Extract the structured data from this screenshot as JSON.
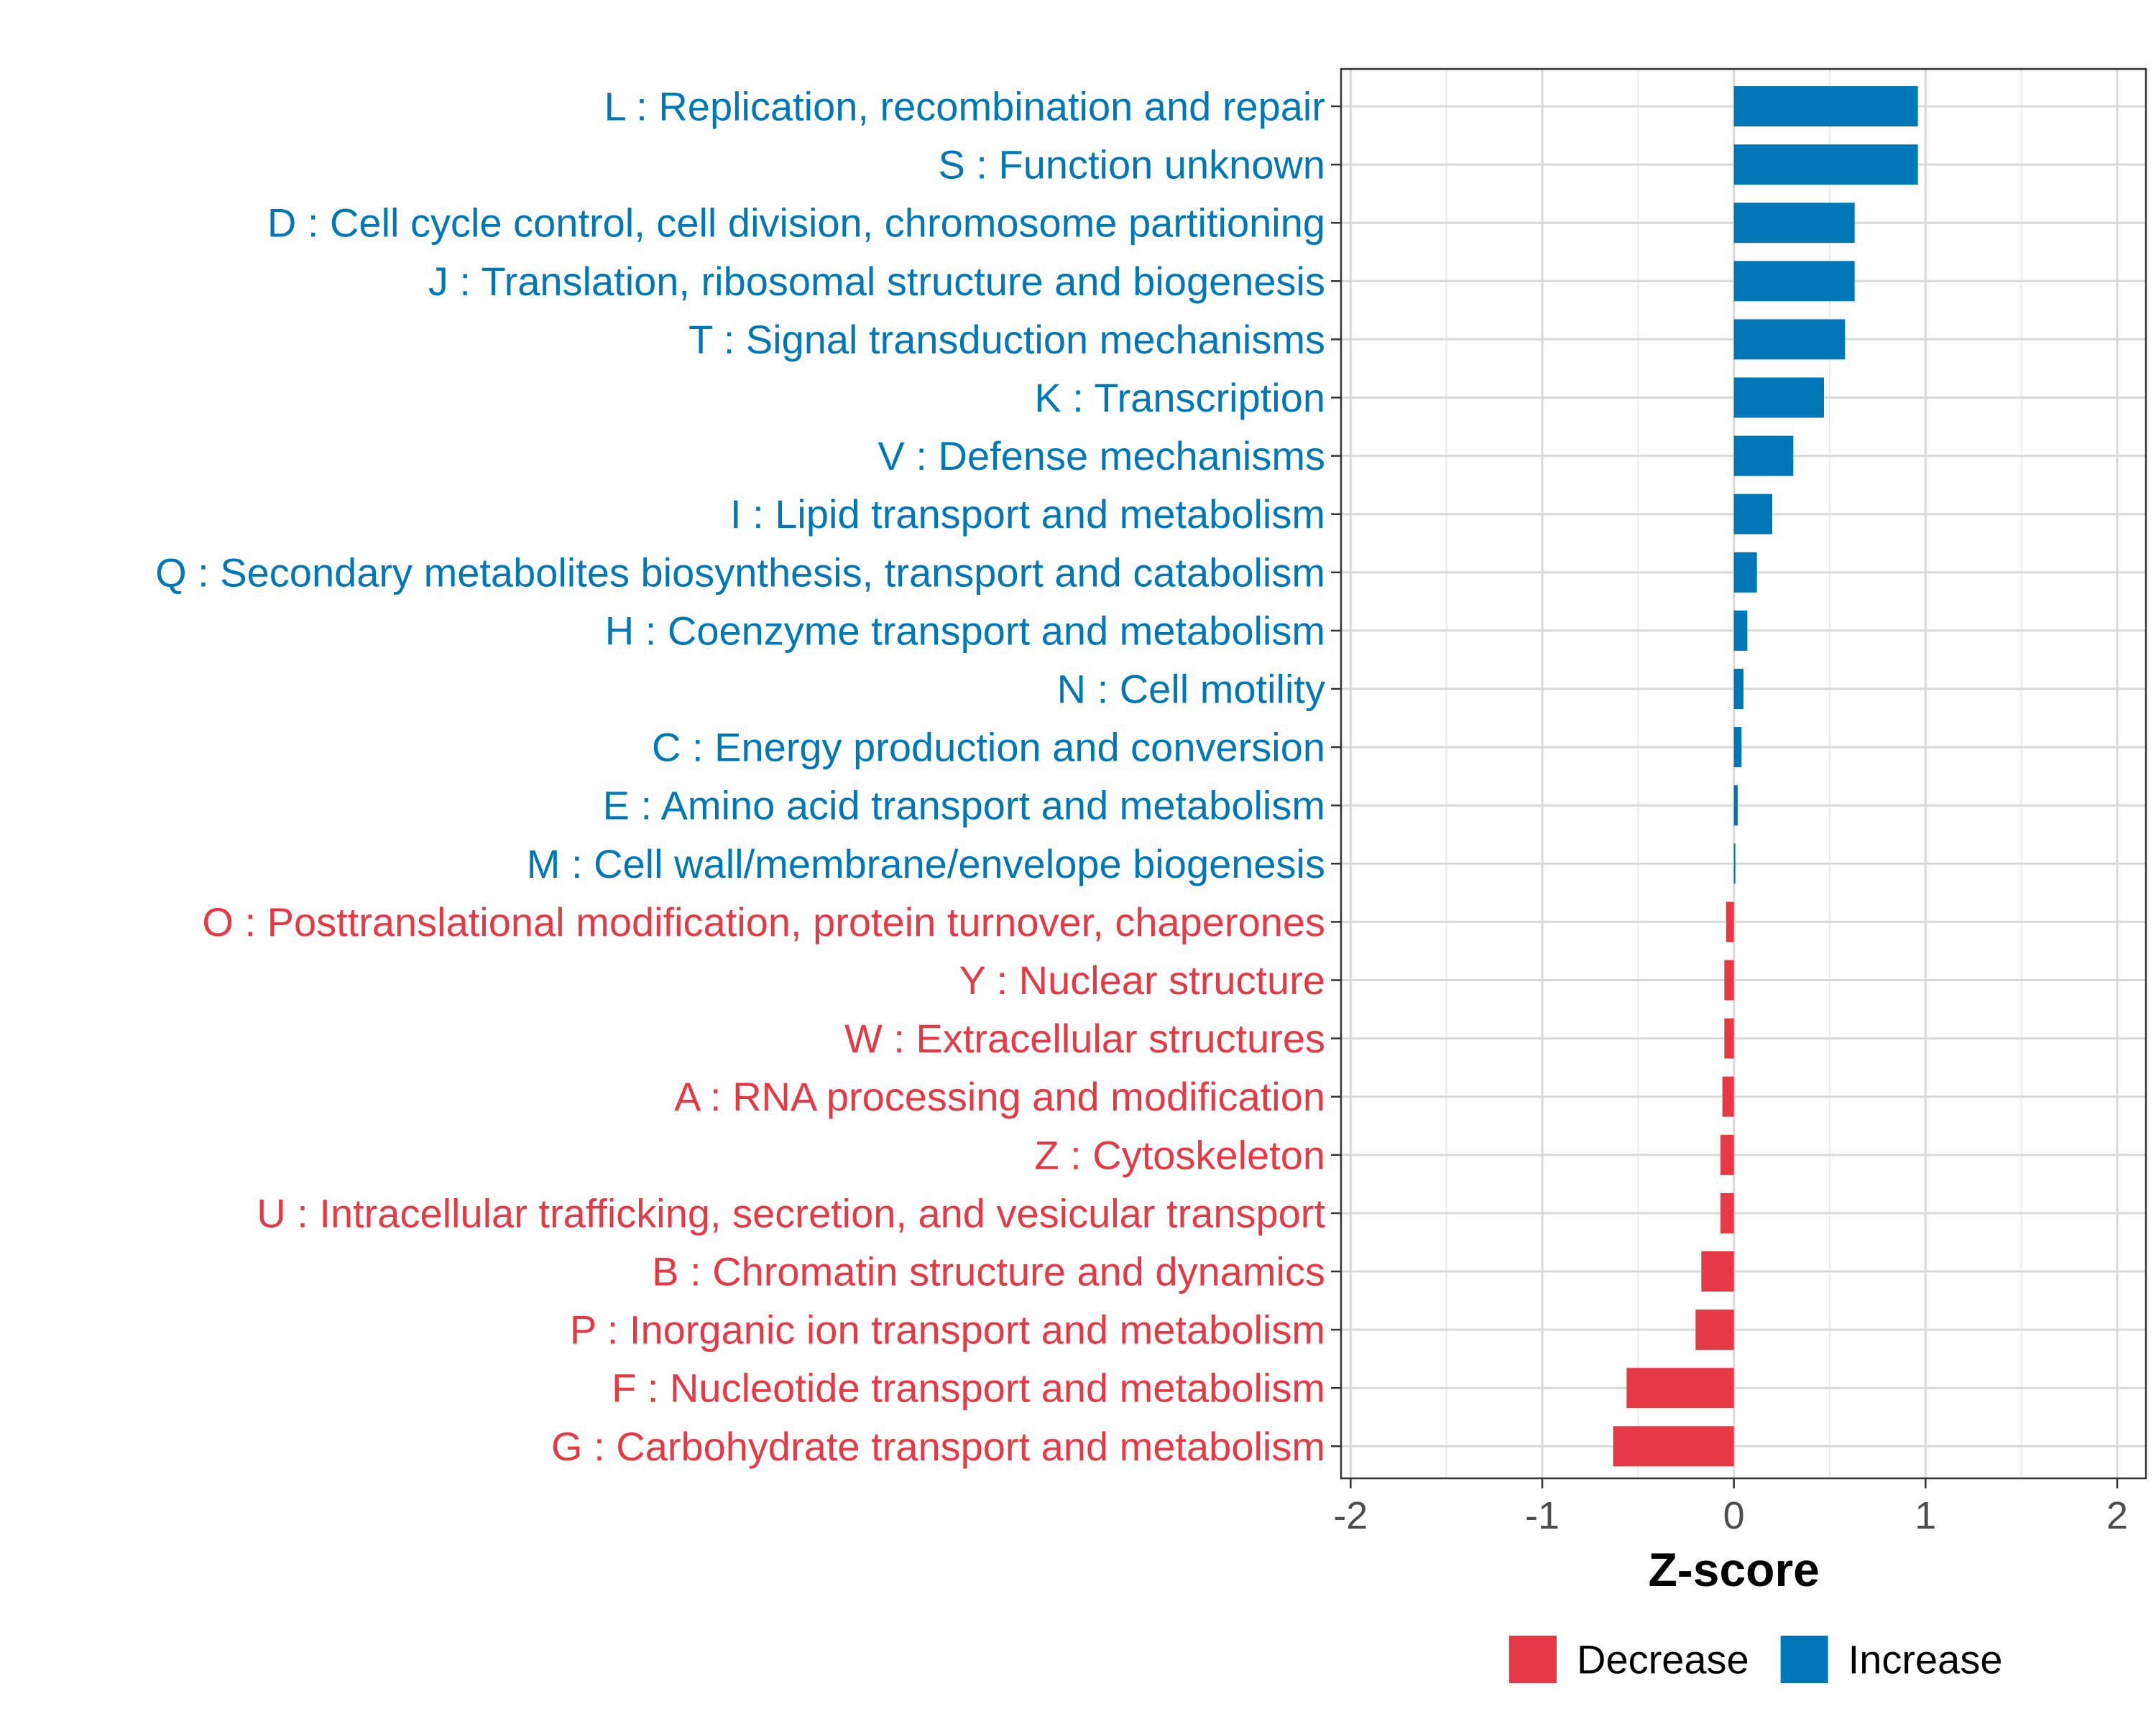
{
  "chart_data": {
    "type": "bar",
    "orientation": "horizontal",
    "xlabel": "Z-score",
    "xlim": [
      -2.05,
      2.15
    ],
    "xticks": [
      -2,
      -1,
      0,
      1,
      2
    ],
    "xtick_labels": [
      "-2",
      "-1",
      "0",
      "1",
      "2"
    ],
    "grid": true,
    "legend_position": "bottom",
    "colors": {
      "Decrease": "#e63946",
      "Increase": "#0077b6"
    },
    "legend": [
      {
        "label": "Decrease",
        "color": "#e63946"
      },
      {
        "label": "Increase",
        "color": "#0077b6"
      }
    ],
    "bars": [
      {
        "label": "L : Replication, recombination and repair",
        "value": 0.96,
        "direction": "Increase"
      },
      {
        "label": "S : Function unknown",
        "value": 0.96,
        "direction": "Increase"
      },
      {
        "label": "D : Cell cycle control, cell division, chromosome partitioning",
        "value": 0.63,
        "direction": "Increase"
      },
      {
        "label": "J : Translation, ribosomal structure and biogenesis",
        "value": 0.63,
        "direction": "Increase"
      },
      {
        "label": "T : Signal transduction mechanisms",
        "value": 0.58,
        "direction": "Increase"
      },
      {
        "label": "K : Transcription",
        "value": 0.47,
        "direction": "Increase"
      },
      {
        "label": "V : Defense mechanisms",
        "value": 0.31,
        "direction": "Increase"
      },
      {
        "label": "I : Lipid transport and metabolism",
        "value": 0.2,
        "direction": "Increase"
      },
      {
        "label": "Q : Secondary metabolites biosynthesis, transport and catabolism",
        "value": 0.12,
        "direction": "Increase"
      },
      {
        "label": "H : Coenzyme transport and metabolism",
        "value": 0.07,
        "direction": "Increase"
      },
      {
        "label": "N : Cell motility",
        "value": 0.05,
        "direction": "Increase"
      },
      {
        "label": "C : Energy production and conversion",
        "value": 0.04,
        "direction": "Increase"
      },
      {
        "label": "E : Amino acid transport and metabolism",
        "value": 0.02,
        "direction": "Increase"
      },
      {
        "label": "M : Cell wall/membrane/envelope biogenesis",
        "value": 0.005,
        "direction": "Increase"
      },
      {
        "label": "O : Posttranslational modification, protein turnover, chaperones",
        "value": -0.04,
        "direction": "Decrease"
      },
      {
        "label": "Y : Nuclear structure",
        "value": -0.05,
        "direction": "Decrease"
      },
      {
        "label": "W : Extracellular structures",
        "value": -0.05,
        "direction": "Decrease"
      },
      {
        "label": "A : RNA processing and modification",
        "value": -0.06,
        "direction": "Decrease"
      },
      {
        "label": "Z : Cytoskeleton",
        "value": -0.07,
        "direction": "Decrease"
      },
      {
        "label": "U : Intracellular trafficking, secretion, and vesicular transport",
        "value": -0.07,
        "direction": "Decrease"
      },
      {
        "label": "B : Chromatin structure and dynamics",
        "value": -0.17,
        "direction": "Decrease"
      },
      {
        "label": "P : Inorganic ion transport and metabolism",
        "value": -0.2,
        "direction": "Decrease"
      },
      {
        "label": "F : Nucleotide transport and metabolism",
        "value": -0.56,
        "direction": "Decrease"
      },
      {
        "label": "G : Carbohydrate transport and metabolism",
        "value": -0.63,
        "direction": "Decrease"
      }
    ]
  }
}
